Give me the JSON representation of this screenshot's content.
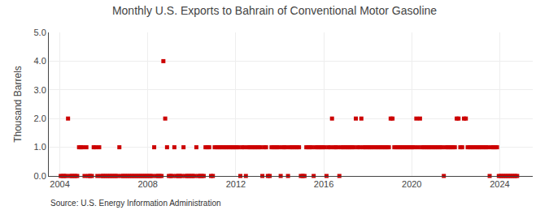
{
  "chart_data": {
    "type": "scatter",
    "title": "Monthly U.S. Exports to Bahrain of Conventional Motor Gasoline",
    "ylabel": "Thousand Barrels",
    "source": "Source: U.S. Energy Information Administration",
    "color": "#cc0000",
    "marker": "square",
    "grid": true,
    "xlim": [
      2003.5,
      2025.5
    ],
    "xticks": [
      2004,
      2008,
      2012,
      2016,
      2020,
      2024
    ],
    "ylim": [
      0,
      5.0
    ],
    "yticks": [
      {
        "value": 0.0,
        "label": "0.0"
      },
      {
        "value": 1.0,
        "label": "1.0"
      },
      {
        "value": 2.0,
        "label": "2.0"
      },
      {
        "value": 3.0,
        "label": "3.0"
      },
      {
        "value": 4.0,
        "label": "4.0"
      },
      {
        "value": 5.0,
        "label": "5.0"
      }
    ],
    "x": [
      2004.0416666667,
      2004.125,
      2004.2083333333,
      2004.2916666667,
      2004.375,
      2004.4583333333,
      2004.5416666667,
      2004.625,
      2004.7083333333,
      2004.7916666667,
      2004.875,
      2004.9583333333,
      2005.0416666667,
      2005.125,
      2005.2083333333,
      2005.2916666667,
      2005.375,
      2005.4583333333,
      2005.5416666667,
      2005.625,
      2005.7083333333,
      2005.7916666667,
      2005.875,
      2005.9583333333,
      2006.0416666667,
      2006.125,
      2006.2083333333,
      2006.2916666667,
      2006.375,
      2006.4583333333,
      2006.5416666667,
      2006.625,
      2006.7083333333,
      2006.7916666667,
      2006.875,
      2006.9583333333,
      2007.0416666667,
      2007.125,
      2007.2083333333,
      2007.2916666667,
      2007.375,
      2007.4583333333,
      2007.5416666667,
      2007.625,
      2007.7083333333,
      2007.7916666667,
      2007.875,
      2007.9583333333,
      2008.0416666667,
      2008.125,
      2008.2083333333,
      2008.2916666667,
      2008.375,
      2008.4583333333,
      2008.5416666667,
      2008.625,
      2008.7083333333,
      2008.7916666667,
      2008.875,
      2008.9583333333,
      2009.0416666667,
      2009.125,
      2009.2083333333,
      2009.2916666667,
      2009.375,
      2009.4583333333,
      2009.5416666667,
      2009.625,
      2009.7083333333,
      2009.7916666667,
      2009.875,
      2009.9583333333,
      2010.0416666667,
      2010.125,
      2010.2083333333,
      2010.2916666667,
      2010.375,
      2010.4583333333,
      2010.5416666667,
      2010.625,
      2010.7083333333,
      2010.7916666667,
      2010.875,
      2010.9583333333,
      2011.0416666667,
      2011.125,
      2011.2083333333,
      2011.2916666667,
      2011.375,
      2011.4583333333,
      2011.5416666667,
      2011.625,
      2011.7083333333,
      2011.7916666667,
      2011.875,
      2011.9583333333,
      2012.0416666667,
      2012.125,
      2012.2083333333,
      2012.2916666667,
      2012.375,
      2012.4583333333,
      2012.5416666667,
      2012.625,
      2012.7083333333,
      2012.7916666667,
      2012.875,
      2012.9583333333,
      2013.0416666667,
      2013.125,
      2013.2083333333,
      2013.2916666667,
      2013.375,
      2013.4583333333,
      2013.5416666667,
      2013.625,
      2013.7083333333,
      2013.7916666667,
      2013.875,
      2013.9583333333,
      2014.0416666667,
      2014.125,
      2014.2083333333,
      2014.2916666667,
      2014.375,
      2014.4583333333,
      2014.5416666667,
      2014.625,
      2014.7083333333,
      2014.7916666667,
      2014.875,
      2014.9583333333,
      2015.0416666667,
      2015.125,
      2015.2083333333,
      2015.2916666667,
      2015.375,
      2015.4583333333,
      2015.5416666667,
      2015.625,
      2015.7083333333,
      2015.7916666667,
      2015.875,
      2015.9583333333,
      2016.0416666667,
      2016.125,
      2016.2083333333,
      2016.2916666667,
      2016.375,
      2016.4583333333,
      2016.5416666667,
      2016.625,
      2016.7083333333,
      2016.7916666667,
      2016.875,
      2016.9583333333,
      2017.0416666667,
      2017.125,
      2017.2083333333,
      2017.2916666667,
      2017.375,
      2017.4583333333,
      2017.5416666667,
      2017.625,
      2017.7083333333,
      2017.7916666667,
      2017.875,
      2017.9583333333,
      2018.0416666667,
      2018.125,
      2018.2083333333,
      2018.2916666667,
      2018.375,
      2018.4583333333,
      2018.5416666667,
      2018.625,
      2018.7083333333,
      2018.7916666667,
      2018.875,
      2018.9583333333,
      2019.0416666667,
      2019.125,
      2019.2083333333,
      2019.2916666667,
      2019.375,
      2019.4583333333,
      2019.5416666667,
      2019.625,
      2019.7083333333,
      2019.7916666667,
      2019.875,
      2019.9583333333,
      2020.0416666667,
      2020.125,
      2020.2083333333,
      2020.2916666667,
      2020.375,
      2020.4583333333,
      2020.5416666667,
      2020.625,
      2020.7083333333,
      2020.7916666667,
      2020.875,
      2020.9583333333,
      2021.0416666667,
      2021.125,
      2021.2083333333,
      2021.2916666667,
      2021.375,
      2021.4583333333,
      2021.5416666667,
      2021.625,
      2021.7083333333,
      2021.7916666667,
      2021.875,
      2021.9583333333,
      2022.0416666667,
      2022.125,
      2022.2083333333,
      2022.2916666667,
      2022.375,
      2022.4583333333,
      2022.5416666667,
      2022.625,
      2022.7083333333,
      2022.7916666667,
      2022.875,
      2022.9583333333,
      2023.0416666667,
      2023.125,
      2023.2083333333,
      2023.2916666667,
      2023.375,
      2023.4583333333,
      2023.5416666667,
      2023.625,
      2023.7083333333,
      2023.7916666667,
      2023.875,
      2023.9583333333,
      2024.0416666667,
      2024.125,
      2024.2083333333,
      2024.2916666667,
      2024.375,
      2024.4583333333,
      2024.5416666667,
      2024.625,
      2024.7083333333,
      2024.7916666667
    ],
    "values": [
      0,
      0,
      0,
      0,
      2,
      0,
      0,
      0,
      0,
      0,
      1,
      1,
      1,
      0,
      1,
      0,
      0,
      0,
      1,
      1,
      0,
      1,
      0,
      0,
      0,
      0,
      0,
      0,
      0,
      0,
      0,
      0,
      1,
      0,
      0,
      0,
      0,
      0,
      0,
      0,
      0,
      0,
      0,
      0,
      0,
      0,
      0,
      0,
      0,
      0,
      0,
      1,
      0,
      0,
      0,
      0,
      4,
      2,
      1,
      0,
      0,
      0,
      1,
      0,
      0,
      0,
      0,
      1,
      0,
      0,
      0,
      0,
      0,
      0,
      1,
      0,
      0,
      0,
      0,
      1,
      1,
      1,
      0,
      0,
      1,
      1,
      1,
      1,
      1,
      1,
      1,
      1,
      1,
      1,
      1,
      1,
      1,
      1,
      0,
      1,
      1,
      0,
      1,
      1,
      1,
      1,
      1,
      1,
      1,
      1,
      0,
      1,
      1,
      0,
      0,
      1,
      1,
      1,
      1,
      1,
      0,
      1,
      1,
      1,
      0,
      1,
      1,
      1,
      1,
      1,
      1,
      0,
      0,
      0,
      1,
      1,
      1,
      1,
      0,
      1,
      1,
      1,
      1,
      1,
      1,
      0,
      1,
      1,
      2,
      1,
      1,
      1,
      0,
      1,
      1,
      1,
      1,
      1,
      1,
      1,
      1,
      2,
      1,
      1,
      2,
      1,
      1,
      1,
      1,
      1,
      1,
      1,
      1,
      1,
      1,
      1,
      1,
      1,
      1,
      1,
      2,
      2,
      1,
      1,
      1,
      1,
      1,
      1,
      1,
      1,
      1,
      1,
      1,
      1,
      2,
      1,
      2,
      1,
      1,
      1,
      1,
      1,
      1,
      1,
      1,
      1,
      1,
      1,
      1,
      0,
      1,
      1,
      1,
      1,
      1,
      1,
      2,
      2,
      1,
      1,
      2,
      2,
      1,
      1,
      1,
      1,
      1,
      1,
      1,
      1,
      1,
      1,
      1,
      1,
      0,
      1,
      1,
      1,
      1,
      0,
      0,
      0,
      0,
      0,
      0,
      0,
      0,
      0,
      0,
      0
    ]
  }
}
